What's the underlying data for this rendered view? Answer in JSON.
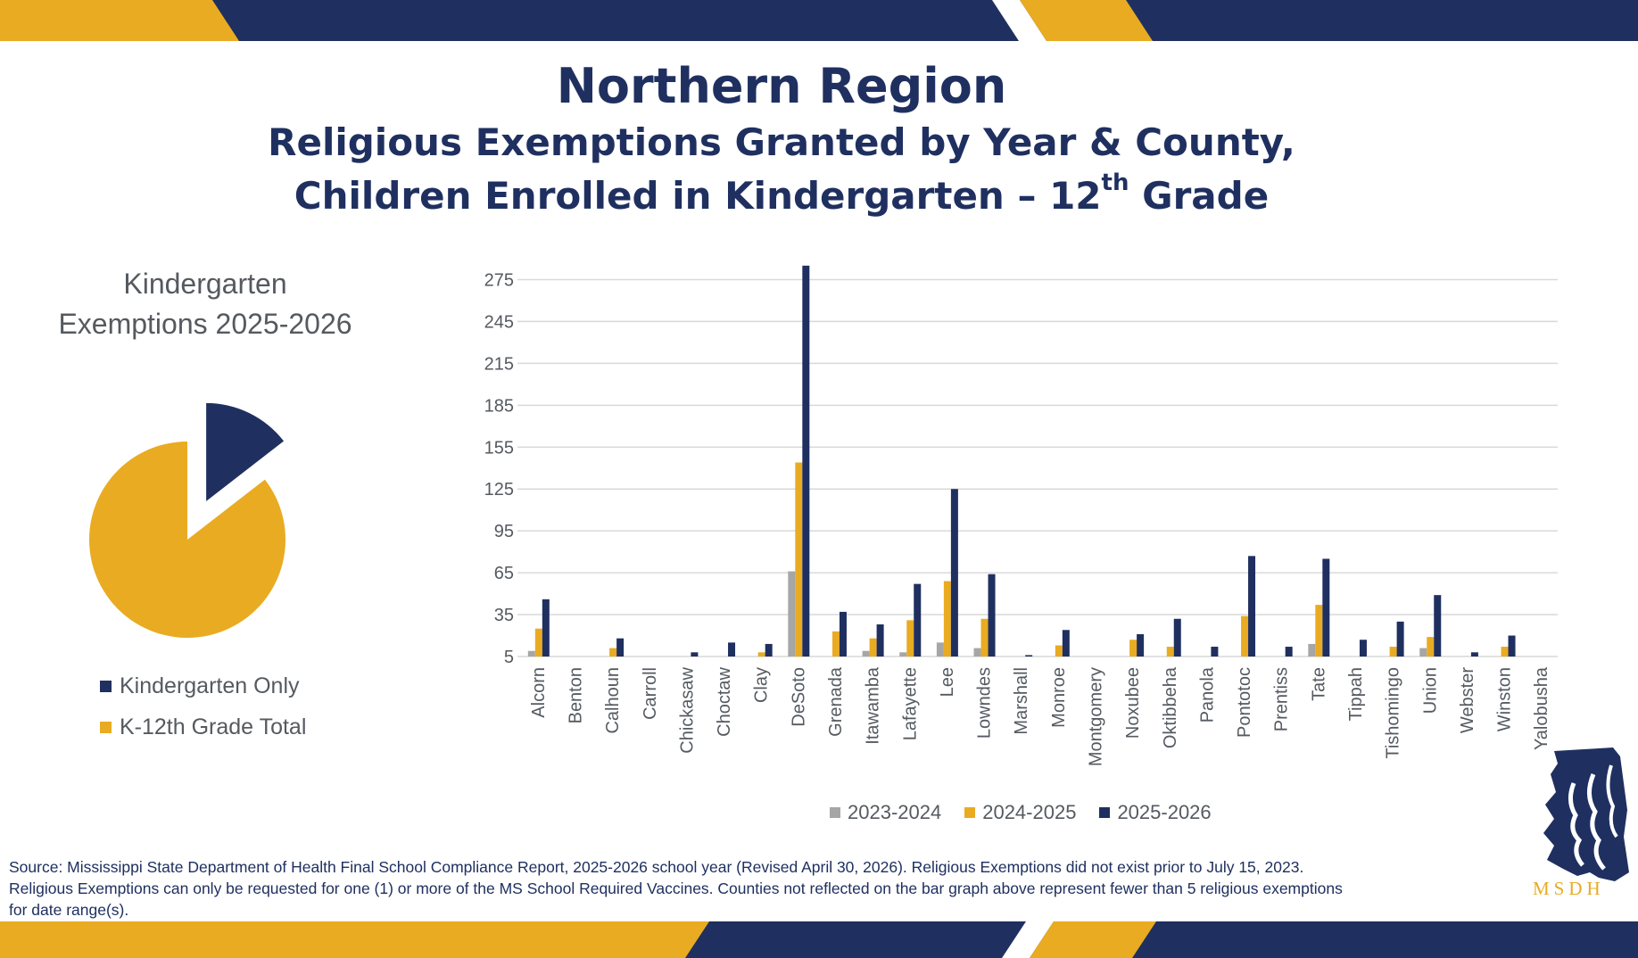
{
  "colors": {
    "navy": "#1f3060",
    "gold": "#e9ab22",
    "gray": "#a6a6a6",
    "grid": "#d9d9d9",
    "text": "#555a60"
  },
  "header": {
    "title": "Northern Region",
    "subtitle_line1": "Religious Exemptions Granted by Year & County,",
    "subtitle_line2_pre": "Children Enrolled in Kindergarten – 12",
    "subtitle_line2_sup": "th",
    "subtitle_line2_post": " Grade"
  },
  "pie": {
    "title_line1": "Kindergarten",
    "title_line2": "Exemptions 2025-2026",
    "legend": [
      {
        "label": "Kindergarten Only",
        "color": "#1f3060"
      },
      {
        "label": "K-12th Grade Total",
        "color": "#e9ab22"
      }
    ]
  },
  "chart_data": [
    {
      "type": "pie",
      "title": "Kindergarten Exemptions 2025-2026",
      "slices": [
        {
          "label": "Kindergarten Only",
          "percent": 14.5,
          "color": "#1f3060"
        },
        {
          "label": "K-12th Grade Total",
          "percent": 85.5,
          "color": "#e9ab22"
        }
      ],
      "legend_position": "bottom"
    },
    {
      "type": "bar",
      "categories": [
        "Alcorn",
        "Benton",
        "Calhoun",
        "Carroll",
        "Chickasaw",
        "Choctaw",
        "Clay",
        "DeSoto",
        "Grenada",
        "Itawamba",
        "Lafayette",
        "Lee",
        "Lowndes",
        "Marshall",
        "Monroe",
        "Montgomery",
        "Noxubee",
        "Oktibbeha",
        "Panola",
        "Pontotoc",
        "Prentiss",
        "Tate",
        "Tippah",
        "Tishomingo",
        "Union",
        "Webster",
        "Winston",
        "Yalobusha"
      ],
      "series": [
        {
          "name": "2023-2024",
          "color": "#a6a6a6",
          "values": [
            9,
            0,
            5,
            0,
            3,
            0,
            0,
            66,
            4,
            9,
            8,
            15,
            11,
            0,
            5,
            1,
            5,
            5,
            0,
            0,
            0,
            14,
            0,
            0,
            11,
            0,
            4,
            0
          ]
        },
        {
          "name": "2024-2025",
          "color": "#e9ab22",
          "values": [
            25,
            0,
            11,
            0,
            5,
            5,
            8,
            144,
            23,
            18,
            31,
            59,
            32,
            5,
            13,
            3,
            17,
            12,
            0,
            34,
            2,
            42,
            0,
            12,
            19,
            0,
            12,
            5
          ]
        },
        {
          "name": "2025-2026",
          "color": "#1f3060",
          "values": [
            46,
            4,
            18,
            0,
            8,
            15,
            14,
            285,
            37,
            28,
            57,
            125,
            64,
            6,
            24,
            4,
            21,
            32,
            12,
            77,
            12,
            75,
            17,
            30,
            49,
            8,
            20,
            4
          ]
        }
      ],
      "y_ticks": [
        5,
        35,
        65,
        95,
        125,
        155,
        185,
        215,
        245,
        275
      ],
      "ylim": [
        5,
        290
      ],
      "grid": true,
      "legend_position": "bottom"
    }
  ],
  "bar_legend": [
    {
      "label": "2023-2024",
      "color": "#a6a6a6"
    },
    {
      "label": "2024-2025",
      "color": "#e9ab22"
    },
    {
      "label": "2025-2026",
      "color": "#1f3060"
    }
  ],
  "footer": {
    "source_line1": "Source: Mississippi State Department of Health Final School Compliance Report, 2025-2026 school year (Revised April 30, 2026). Religious Exemptions did not exist prior to July 15, 2023.",
    "source_line2": "Religious Exemptions can only be requested for one (1) or more of the MS School Required Vaccines. Counties not reflected on the bar graph above represent fewer than 5 religious exemptions",
    "source_line3": "for date range(s).",
    "logo_text": "MSDH"
  }
}
